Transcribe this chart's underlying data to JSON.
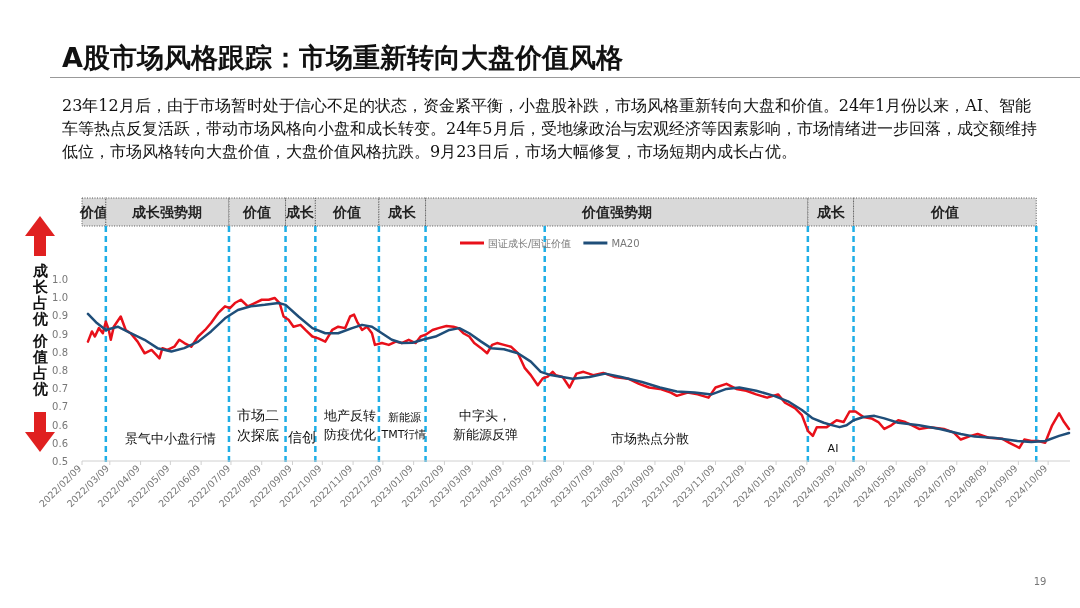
{
  "chart_data": {
    "type": "line",
    "title": "A股市场风格跟踪：市场重新转向大盘价值风格",
    "subtitle": "23年12月后，由于市场暂时处于信心不足的状态，资金紧平衡，小盘股补跌，市场风格重新转向大盘和价值。24年1月份以来，AI、智能车等热点反复活跃，带动市场风格向小盘和成长转变。24年5月后，受地缘政治与宏观经济等因素影响，市场情绪进一步回落，成交额维持低位，市场风格转向大盘价值，大盘价值风格抗跌。9月23日后，市场大幅修复，市场短期内成长占优。",
    "ylabel": "成长占优价值占优",
    "legend": "top",
    "xlim": [
      "2022-02-09",
      "2024-10-31"
    ],
    "ylim": [
      0.5,
      1.0
    ],
    "yticks": [
      0.5,
      {
        "value": 0.55,
        "label": "0.6"
      },
      0.6,
      {
        "value": 0.65,
        "label": "0.7"
      },
      0.7,
      {
        "value": 0.75,
        "label": "0.8"
      },
      0.8,
      {
        "value": 0.85,
        "label": "0.9"
      },
      0.9,
      {
        "value": 0.95,
        "label": "1.0"
      },
      {
        "value": 1.0,
        "label": "1.0"
      }
    ],
    "xticks": [
      {
        "value": "2022-02-09",
        "label": "2022/02/09"
      },
      {
        "value": "2022-03-09",
        "label": "2022/03/09"
      },
      {
        "value": "2022-04-09",
        "label": "2022/04/09"
      },
      {
        "value": "2022-05-09",
        "label": "2022/05/09"
      },
      {
        "value": "2022-06-09",
        "label": "2022/06/09"
      },
      {
        "value": "2022-07-09",
        "label": "2022/07/09"
      },
      {
        "value": "2022-08-09",
        "label": "2022/08/09"
      },
      {
        "value": "2022-09-09",
        "label": "2022/09/09"
      },
      {
        "value": "2022-10-09",
        "label": "2022/10/09"
      },
      {
        "value": "2022-11-09",
        "label": "2022/11/09"
      },
      {
        "value": "2022-12-09",
        "label": "2022/12/09"
      },
      {
        "value": "2023-01-09",
        "label": "2023/01/09"
      },
      {
        "value": "2023-02-09",
        "label": "2023/02/09"
      },
      {
        "value": "2023-03-09",
        "label": "2023/03/09"
      },
      {
        "value": "2023-04-09",
        "label": "2023/04/09"
      },
      {
        "value": "2023-05-09",
        "label": "2023/05/09"
      },
      {
        "value": "2023-06-09",
        "label": "2023/06/09"
      },
      {
        "value": "2023-07-09",
        "label": "2023/07/09"
      },
      {
        "value": "2023-08-09",
        "label": "2023/08/09"
      },
      {
        "value": "2023-09-09",
        "label": "2023/09/09"
      },
      {
        "value": "2023-10-09",
        "label": "2023/10/09"
      },
      {
        "value": "2023-11-09",
        "label": "2023/11/09"
      },
      {
        "value": "2023-12-09",
        "label": "2023/12/09"
      },
      {
        "value": "2024-01-09",
        "label": "2024/01/09"
      },
      {
        "value": "2024-02-09",
        "label": "2024/02/09"
      },
      {
        "value": "2024-03-09",
        "label": "2024/03/09"
      },
      {
        "value": "2024-04-09",
        "label": "2024/04/09"
      },
      {
        "value": "2024-05-09",
        "label": "2024/05/09"
      },
      {
        "value": "2024-06-09",
        "label": "2024/06/09"
      },
      {
        "value": "2024-07-09",
        "label": "2024/07/09"
      },
      {
        "value": "2024-08-09",
        "label": "2024/08/09"
      },
      {
        "value": "2024-09-09",
        "label": "2024/09/09"
      },
      {
        "value": "2024-10-09",
        "label": "2024/10/09"
      }
    ],
    "series": [
      {
        "name": "国证成长/国证价值",
        "color": "#e8101a",
        "x": [
          "2022-02-15",
          "2022-02-19",
          "2022-02-22",
          "2022-02-26",
          "2022-03-02",
          "2022-03-05",
          "2022-03-08",
          "2022-03-10",
          "2022-03-13",
          "2022-03-20",
          "2022-03-25",
          "2022-03-30",
          "2022-04-06",
          "2022-04-13",
          "2022-04-20",
          "2022-04-25",
          "2022-04-28",
          "2022-05-01",
          "2022-05-06",
          "2022-05-13",
          "2022-05-18",
          "2022-05-23",
          "2022-05-30",
          "2022-06-06",
          "2022-06-13",
          "2022-06-19",
          "2022-06-26",
          "2022-07-03",
          "2022-07-08",
          "2022-07-13",
          "2022-07-19",
          "2022-07-26",
          "2022-08-02",
          "2022-08-09",
          "2022-08-16",
          "2022-08-22",
          "2022-08-27",
          "2022-08-31",
          "2022-09-05",
          "2022-09-10",
          "2022-09-17",
          "2022-09-22",
          "2022-09-29",
          "2022-10-05",
          "2022-10-12",
          "2022-10-19",
          "2022-10-25",
          "2022-11-01",
          "2022-11-06",
          "2022-11-10",
          "2022-11-13",
          "2022-11-18",
          "2022-11-23",
          "2022-11-28",
          "2022-12-01",
          "2022-12-08",
          "2022-12-15",
          "2022-12-22",
          "2022-12-28",
          "2023-01-04",
          "2023-01-11",
          "2023-01-16",
          "2023-01-21",
          "2023-01-28",
          "2023-02-03",
          "2023-02-11",
          "2023-02-18",
          "2023-02-23",
          "2023-02-28",
          "2023-03-06",
          "2023-03-11",
          "2023-03-18",
          "2023-03-24",
          "2023-03-29",
          "2023-04-03",
          "2023-04-10",
          "2023-04-17",
          "2023-04-24",
          "2023-05-01",
          "2023-05-07",
          "2023-05-14",
          "2023-05-19",
          "2023-05-24",
          "2023-05-29",
          "2023-06-01",
          "2023-06-08",
          "2023-06-15",
          "2023-06-22",
          "2023-06-29",
          "2023-07-09",
          "2023-07-19",
          "2023-07-30",
          "2023-08-13",
          "2023-08-24",
          "2023-09-03",
          "2023-09-14",
          "2023-09-25",
          "2023-10-01",
          "2023-10-12",
          "2023-10-22",
          "2023-11-02",
          "2023-11-09",
          "2023-11-20",
          "2023-11-30",
          "2023-12-10",
          "2023-12-20",
          "2023-12-31",
          "2024-01-11",
          "2024-01-18",
          "2024-01-28",
          "2024-02-04",
          "2024-02-10",
          "2024-02-15",
          "2024-02-19",
          "2024-02-29",
          "2024-03-10",
          "2024-03-17",
          "2024-03-23",
          "2024-03-29",
          "2024-04-06",
          "2024-04-14",
          "2024-04-21",
          "2024-04-27",
          "2024-05-04",
          "2024-05-11",
          "2024-05-18",
          "2024-05-25",
          "2024-06-01",
          "2024-06-12",
          "2024-06-26",
          "2024-07-06",
          "2024-07-13",
          "2024-07-23",
          "2024-07-30",
          "2024-08-10",
          "2024-08-24",
          "2024-08-31",
          "2024-09-10",
          "2024-09-15",
          "2024-09-22",
          "2024-09-29",
          "2024-10-06",
          "2024-10-13",
          "2024-10-20",
          "2024-10-25",
          "2024-10-30"
        ],
        "values": [
          0.828,
          0.856,
          0.842,
          0.865,
          0.851,
          0.883,
          0.86,
          0.833,
          0.869,
          0.897,
          0.86,
          0.851,
          0.828,
          0.796,
          0.805,
          0.791,
          0.782,
          0.81,
          0.805,
          0.814,
          0.833,
          0.824,
          0.814,
          0.842,
          0.86,
          0.879,
          0.906,
          0.925,
          0.92,
          0.934,
          0.943,
          0.925,
          0.934,
          0.943,
          0.943,
          0.948,
          0.934,
          0.897,
          0.888,
          0.869,
          0.874,
          0.86,
          0.842,
          0.837,
          0.828,
          0.86,
          0.869,
          0.865,
          0.897,
          0.902,
          0.883,
          0.86,
          0.869,
          0.851,
          0.819,
          0.824,
          0.819,
          0.828,
          0.824,
          0.833,
          0.824,
          0.842,
          0.847,
          0.86,
          0.865,
          0.871,
          0.869,
          0.865,
          0.851,
          0.842,
          0.824,
          0.81,
          0.796,
          0.819,
          0.824,
          0.819,
          0.814,
          0.796,
          0.755,
          0.736,
          0.708,
          0.727,
          0.732,
          0.745,
          0.736,
          0.731,
          0.702,
          0.74,
          0.745,
          0.736,
          0.742,
          0.731,
          0.726,
          0.712,
          0.702,
          0.698,
          0.688,
          0.679,
          0.688,
          0.683,
          0.674,
          0.702,
          0.712,
          0.698,
          0.693,
          0.683,
          0.674,
          0.683,
          0.66,
          0.645,
          0.626,
          0.583,
          0.569,
          0.593,
          0.593,
          0.612,
          0.607,
          0.636,
          0.636,
          0.621,
          0.617,
          0.607,
          0.588,
          0.598,
          0.612,
          0.607,
          0.598,
          0.588,
          0.593,
          0.588,
          0.578,
          0.559,
          0.569,
          0.574,
          0.564,
          0.561,
          0.55,
          0.536,
          0.559,
          0.555,
          0.555,
          0.55,
          0.598,
          0.631,
          0.607,
          0.588
        ]
      },
      {
        "name": "MA20",
        "color": "#1f4e79",
        "x": [
          "2022-02-15",
          "2022-02-24",
          "2022-03-05",
          "2022-03-17",
          "2022-03-30",
          "2022-04-13",
          "2022-04-26",
          "2022-05-10",
          "2022-05-23",
          "2022-06-06",
          "2022-06-19",
          "2022-07-03",
          "2022-07-16",
          "2022-07-29",
          "2022-08-12",
          "2022-08-26",
          "2022-09-02",
          "2022-09-15",
          "2022-09-29",
          "2022-10-12",
          "2022-10-25",
          "2022-11-08",
          "2022-11-18",
          "2022-11-28",
          "2022-12-08",
          "2022-12-18",
          "2022-12-28",
          "2023-01-08",
          "2023-01-18",
          "2023-01-31",
          "2023-02-14",
          "2023-02-24",
          "2023-03-06",
          "2023-03-18",
          "2023-03-28",
          "2023-04-10",
          "2023-04-24",
          "2023-05-07",
          "2023-05-17",
          "2023-05-27",
          "2023-06-18",
          "2023-07-05",
          "2023-07-21",
          "2023-08-06",
          "2023-08-27",
          "2023-09-14",
          "2023-10-01",
          "2023-10-19",
          "2023-11-05",
          "2023-11-20",
          "2023-12-03",
          "2023-12-20",
          "2024-01-07",
          "2024-01-21",
          "2024-02-04",
          "2024-02-15",
          "2024-02-26",
          "2024-03-06",
          "2024-03-13",
          "2024-03-20",
          "2024-03-27",
          "2024-04-06",
          "2024-04-17",
          "2024-04-27",
          "2024-05-11",
          "2024-06-01",
          "2024-06-22",
          "2024-07-13",
          "2024-07-27",
          "2024-08-17",
          "2024-09-08",
          "2024-09-22",
          "2024-10-06",
          "2024-10-20",
          "2024-10-30"
        ],
        "values": [
          0.904,
          0.879,
          0.86,
          0.869,
          0.851,
          0.833,
          0.81,
          0.801,
          0.81,
          0.828,
          0.856,
          0.892,
          0.915,
          0.925,
          0.929,
          0.934,
          0.929,
          0.897,
          0.865,
          0.851,
          0.851,
          0.865,
          0.874,
          0.869,
          0.851,
          0.833,
          0.824,
          0.825,
          0.833,
          0.842,
          0.86,
          0.865,
          0.851,
          0.828,
          0.81,
          0.807,
          0.796,
          0.773,
          0.745,
          0.736,
          0.726,
          0.731,
          0.74,
          0.731,
          0.717,
          0.702,
          0.691,
          0.688,
          0.683,
          0.698,
          0.702,
          0.693,
          0.679,
          0.664,
          0.64,
          0.617,
          0.605,
          0.598,
          0.593,
          0.598,
          0.612,
          0.621,
          0.624,
          0.617,
          0.605,
          0.598,
          0.588,
          0.574,
          0.567,
          0.563,
          0.555,
          0.552,
          0.555,
          0.569,
          0.577
        ]
      }
    ],
    "bands": [
      {
        "axis": "x",
        "from": "2022-02-09",
        "to": "2022-03-05",
        "label": "价值",
        "color": "#d9d9d9"
      },
      {
        "axis": "x",
        "from": "2022-03-05",
        "to": "2022-07-07",
        "label": "成长强势期",
        "color": "#d9d9d9"
      },
      {
        "axis": "x",
        "from": "2022-07-07",
        "to": "2022-09-02",
        "label": "价值",
        "color": "#d9d9d9"
      },
      {
        "axis": "x",
        "from": "2022-09-02",
        "to": "2022-10-02",
        "label": "成长",
        "color": "#d9d9d9"
      },
      {
        "axis": "x",
        "from": "2022-10-02",
        "to": "2022-12-05",
        "label": "价值",
        "color": "#d9d9d9"
      },
      {
        "axis": "x",
        "from": "2022-12-05",
        "to": "2023-01-21",
        "label": "成长",
        "color": "#d9d9d9"
      },
      {
        "axis": "x",
        "from": "2023-01-21",
        "to": "2024-02-10",
        "label": "价值强势期",
        "color": "#d9d9d9"
      },
      {
        "axis": "x",
        "from": "2024-02-10",
        "to": "2024-03-27",
        "label": "成长",
        "color": "#d9d9d9"
      },
      {
        "axis": "x",
        "from": "2024-03-27",
        "to": "2024-09-27",
        "label": "价值",
        "color": "#d9d9d9"
      }
    ],
    "ref_lines": [
      {
        "axis": "x",
        "value": "2022-03-05",
        "color": "#1eaee6",
        "line_style": "dashed"
      },
      {
        "axis": "x",
        "value": "2022-07-07",
        "color": "#1eaee6",
        "line_style": "dashed"
      },
      {
        "axis": "x",
        "value": "2022-09-02",
        "color": "#1eaee6",
        "line_style": "dashed"
      },
      {
        "axis": "x",
        "value": "2022-10-02",
        "color": "#1eaee6",
        "line_style": "dashed"
      },
      {
        "axis": "x",
        "value": "2022-12-05",
        "color": "#1eaee6",
        "line_style": "dashed"
      },
      {
        "axis": "x",
        "value": "2023-01-21",
        "color": "#1eaee6",
        "line_style": "dashed"
      },
      {
        "axis": "x",
        "value": "2023-05-21",
        "color": "#1eaee6",
        "line_style": "dashed"
      },
      {
        "axis": "x",
        "value": "2024-02-10",
        "color": "#1eaee6",
        "line_style": "dashed"
      },
      {
        "axis": "x",
        "value": "2024-03-27",
        "color": "#1eaee6",
        "line_style": "dashed"
      },
      {
        "axis": "x",
        "value": "2024-09-27",
        "color": "#1eaee6",
        "line_style": "dashed"
      }
    ],
    "annotations": [
      "景气中小盘行情",
      "市场二次探底",
      "信创",
      "地产反转防疫优化",
      "新能源TMT行情",
      "中字头，新能源反弹",
      "市场热点分散",
      "AI",
      "19"
    ]
  }
}
